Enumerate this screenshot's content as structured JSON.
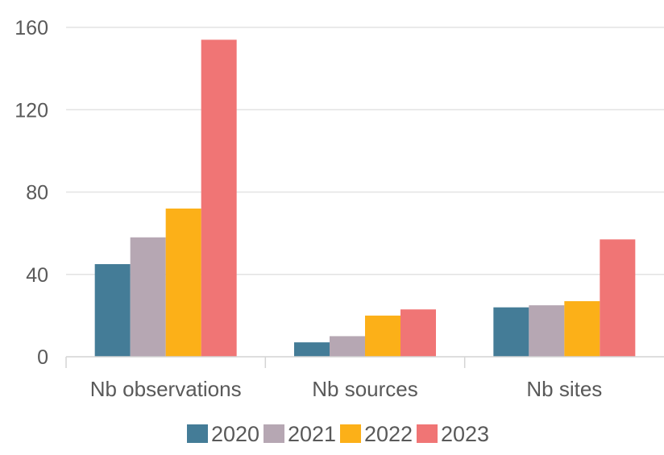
{
  "chart_data": {
    "type": "bar",
    "categories": [
      "Nb observations",
      "Nb sources",
      "Nb sites"
    ],
    "series": [
      {
        "name": "2020",
        "values": [
          45,
          7,
          24
        ],
        "color": "#447C97"
      },
      {
        "name": "2021",
        "values": [
          58,
          10,
          25
        ],
        "color": "#B6A7B3"
      },
      {
        "name": "2022",
        "values": [
          72,
          20,
          27
        ],
        "color": "#FCB018"
      },
      {
        "name": "2023",
        "values": [
          154,
          23,
          57
        ],
        "color": "#F07575"
      }
    ],
    "yticks": [
      0,
      40,
      80,
      120,
      160
    ],
    "ylim": [
      0,
      160
    ],
    "grid": true,
    "legend_position": "bottom"
  }
}
